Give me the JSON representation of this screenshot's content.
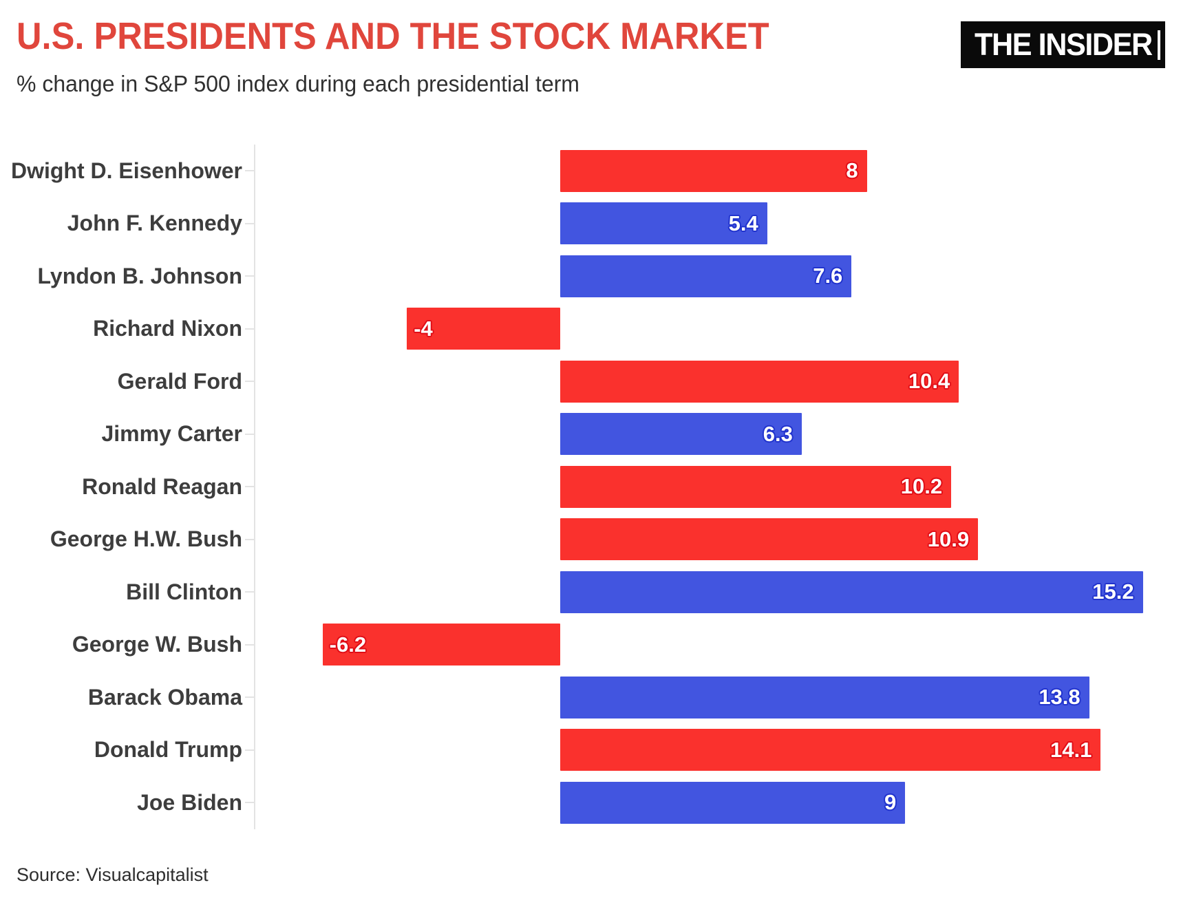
{
  "header": {
    "title": "U.S. PRESIDENTS AND THE STOCK MARKET",
    "subtitle": "% change in S&P 500 index during each presidential term",
    "logo_text": "THE INSIDER"
  },
  "footer": {
    "source": "Source: Visualcapitalist"
  },
  "colors": {
    "republican_red": "#fa312d",
    "democrat_blue": "#4255e0",
    "republican_glow": "#e00e17",
    "democrat_glow": "#2133cd",
    "title_red": "#e0463c",
    "label_gray": "#3d3d3d",
    "axis_gray": "#e3e3e3",
    "logo_bg": "#0a0a0a",
    "logo_fg": "#ffffff"
  },
  "chart_data": {
    "type": "bar",
    "orientation": "horizontal",
    "title": "U.S. PRESIDENTS AND THE STOCK MARKET",
    "subtitle": "% change in S&P 500 index during each presidential term",
    "xlabel": "",
    "ylabel": "",
    "xlim": [
      -8,
      16.5
    ],
    "grid": false,
    "legend": false,
    "source": "Source: Visualcapitalist",
    "categories": [
      "Dwight D. Eisenhower",
      "John F. Kennedy",
      "Lyndon B. Johnson",
      "Richard Nixon",
      "Gerald Ford",
      "Jimmy Carter",
      "Ronald Reagan",
      "George H.W. Bush",
      "Bill Clinton",
      "George W. Bush",
      "Barack Obama",
      "Donald Trump",
      "Joe Biden"
    ],
    "values": [
      8,
      5.4,
      7.6,
      -4,
      10.4,
      6.3,
      10.2,
      10.9,
      15.2,
      -6.2,
      13.8,
      14.1,
      9
    ],
    "value_labels": [
      "8",
      "5.4",
      "7.6",
      "-4",
      "10.4",
      "6.3",
      "10.2",
      "10.9",
      "15.2",
      "-6.2",
      "13.8",
      "14.1",
      "9"
    ],
    "parties": [
      "R",
      "D",
      "D",
      "R",
      "R",
      "D",
      "R",
      "R",
      "D",
      "R",
      "D",
      "R",
      "D"
    ]
  }
}
